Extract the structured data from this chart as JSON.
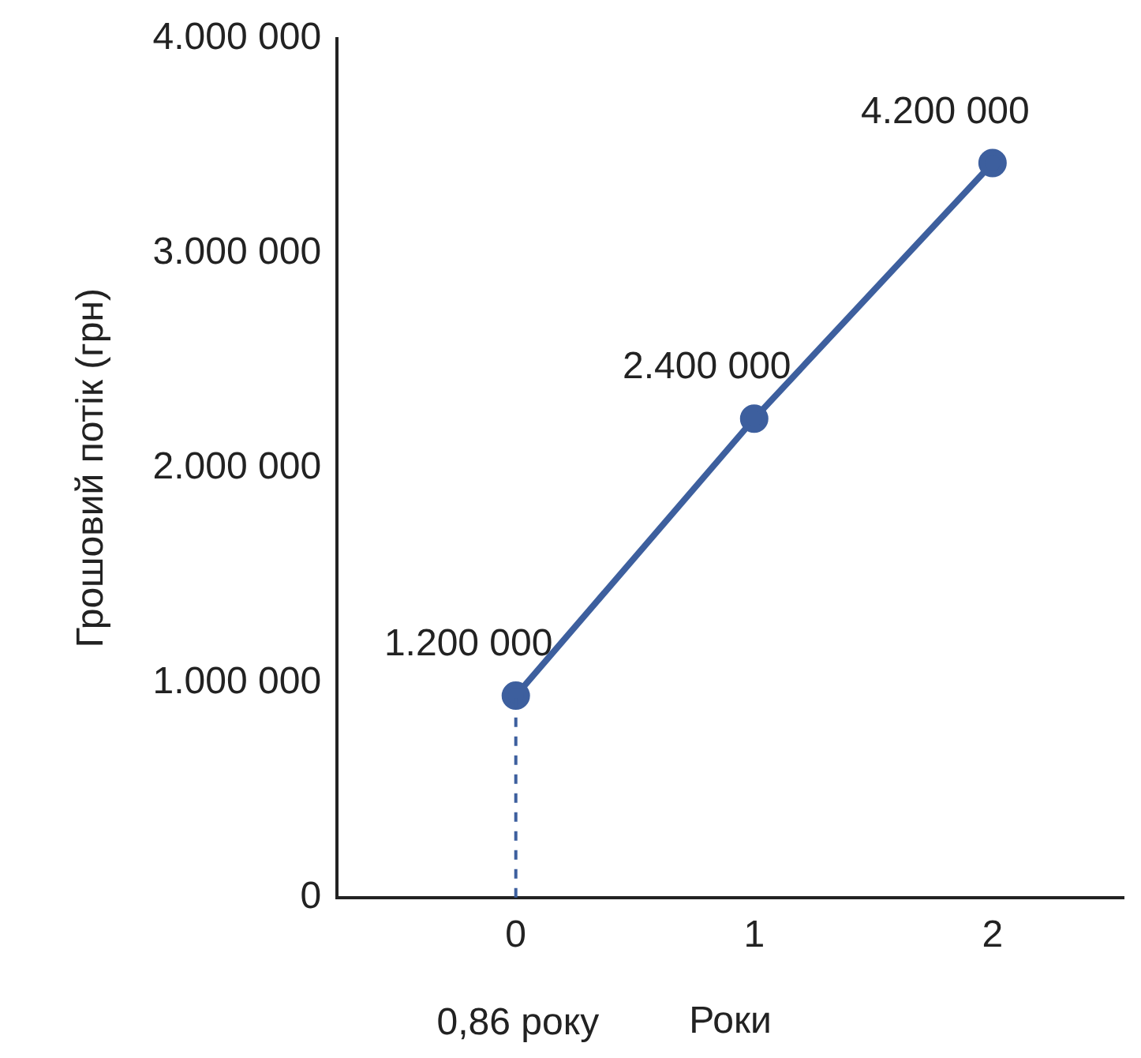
{
  "chart_data": {
    "type": "line",
    "xlabel": "Роки",
    "ylabel": "Грошовий потік (грн)",
    "x": [
      0,
      1,
      2
    ],
    "series": [
      {
        "color": "#3d5f9e",
        "values": [
          0.94,
          2.23,
          3.42
        ]
      }
    ],
    "xlim": [
      -0.75,
      2.55
    ],
    "xticks": [
      0,
      1,
      2
    ],
    "ylim": [
      0,
      4
    ],
    "yticks": [
      0,
      {
        "value": 1,
        "label": "1.000 000"
      },
      {
        "value": 2,
        "label": "2.000 000"
      },
      {
        "value": 3,
        "label": "3.000 000"
      },
      {
        "value": 4,
        "label": "4.000 000"
      }
    ],
    "annotations": [
      {
        "text": "1.200 000",
        "x": 0,
        "y": 0.94
      },
      {
        "text": "2.400 000",
        "x": 1,
        "y": 2.23
      },
      {
        "text": "4.200 000",
        "x": 2,
        "y": 3.42
      },
      "0,86 року"
    ],
    "ref_lines": [
      {
        "axis": "x",
        "value": 0,
        "color": "#3d5f9e",
        "line_style": "dashed"
      }
    ],
    "grid": false,
    "legend": false,
    "marker": "circle",
    "line_style": "solid"
  }
}
